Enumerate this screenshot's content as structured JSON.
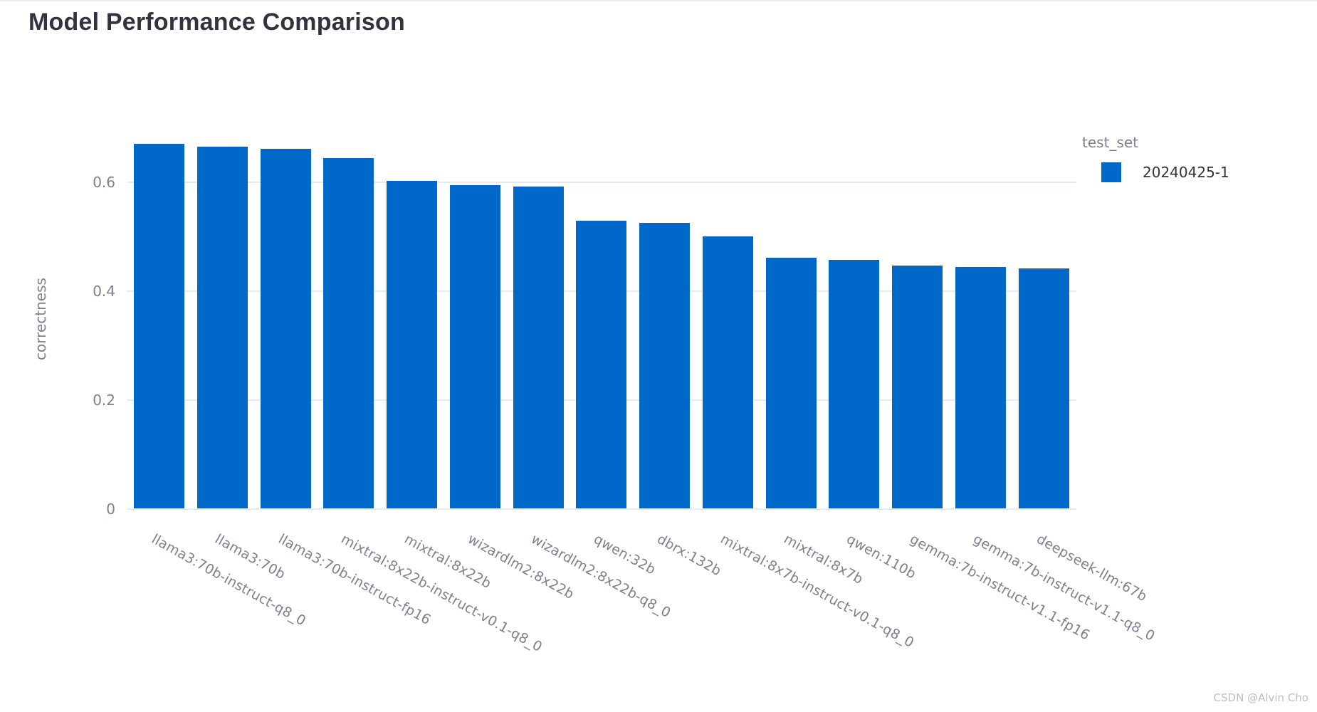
{
  "page": {
    "watermark": "CSDN @Alvin Cho"
  },
  "chart_data": {
    "type": "bar",
    "title": "Model Performance Comparison",
    "xlabel": "",
    "ylabel": "correctness",
    "ylim": [
      0,
      0.7
    ],
    "grid": true,
    "background": "#ffffff",
    "bar_color": "#0068c9",
    "grid_color": "#e6eaf1",
    "axis_text_color": "#7d818f",
    "title_color": "#31333f",
    "yticks": [
      {
        "value": 0,
        "label": "0"
      },
      {
        "value": 0.2,
        "label": "0.2"
      },
      {
        "value": 0.4,
        "label": "0.4"
      },
      {
        "value": 0.6,
        "label": "0.6"
      }
    ],
    "categories": [
      "llama3:70b-instruct-q8_0",
      "llama3:70b",
      "llama3:70b-instruct-fp16",
      "mixtral:8x22b-instruct-v0.1-q8_0",
      "mixtral:8x22b",
      "wizardlm2:8x22b",
      "wizardlm2:8x22b-q8_0",
      "qwen:32b",
      "dbrx:132b",
      "mixtral:8x7b-instruct-v0.1-q8_0",
      "mixtral:8x7b",
      "qwen:110b",
      "gemma:7b-instruct-v1.1-fp16",
      "gemma:7b-instruct-v1.1-q8_0",
      "deepseek-llm:67b"
    ],
    "values": [
      0.67,
      0.666,
      0.661,
      0.644,
      0.603,
      0.595,
      0.592,
      0.53,
      0.525,
      0.5,
      0.462,
      0.458,
      0.447,
      0.444,
      0.442
    ],
    "legend": {
      "title": "test_set",
      "position": "right",
      "entries": [
        {
          "label": "20240425-1",
          "color": "#0068c9"
        }
      ]
    }
  }
}
